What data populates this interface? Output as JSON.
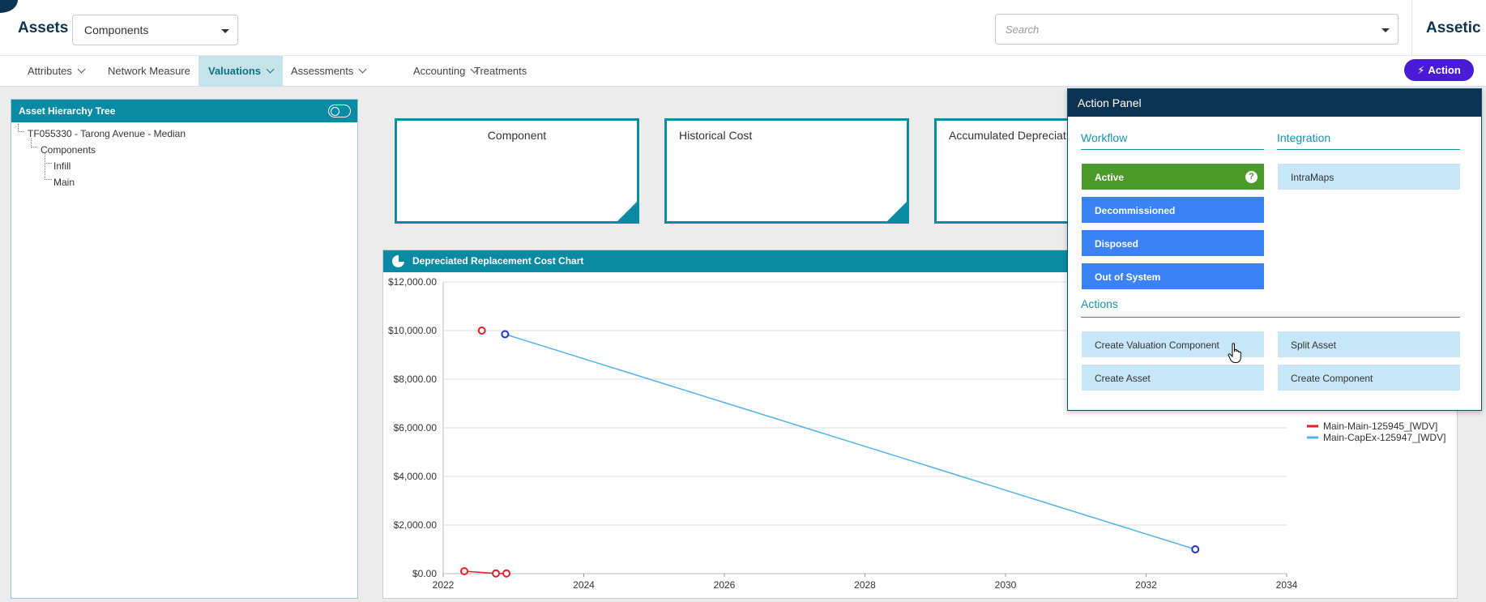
{
  "header": {
    "module_title": "Assets",
    "category_select": "Components",
    "search_placeholder": "Search",
    "brand": "Assetic"
  },
  "nav": {
    "tabs": [
      {
        "label": "Attributes",
        "has_menu": true,
        "active": false
      },
      {
        "label": "Network Measure",
        "has_menu": false,
        "active": false
      },
      {
        "label": "Valuations",
        "has_menu": true,
        "active": true
      },
      {
        "label": "Assessments",
        "has_menu": true,
        "active": false
      },
      {
        "label": "Accounting",
        "has_menu": true,
        "active": false
      },
      {
        "label": "Treatments",
        "has_menu": false,
        "active": false
      }
    ],
    "action_label": "Action"
  },
  "tree": {
    "title": "Asset Hierarchy Tree",
    "root": "TF055330 - Tarong Avenue - Median",
    "group": "Components",
    "leaves": [
      "Infill",
      "Main"
    ]
  },
  "cards": [
    {
      "title": "Component"
    },
    {
      "title": "Historical Cost"
    },
    {
      "title": "Accumulated Depreciat"
    }
  ],
  "chart_panel": {
    "title": "Depreciated Replacement Cost Chart"
  },
  "chart_data": {
    "type": "line",
    "title": "",
    "xlabel": "",
    "ylabel": "",
    "xlim": [
      2022,
      2034
    ],
    "ylim": [
      0,
      12000
    ],
    "x_ticks": [
      "2022",
      "2024",
      "2026",
      "2028",
      "2030",
      "2032",
      "2034"
    ],
    "y_ticks": [
      "$0.00",
      "$2,000.00",
      "$4,000.00",
      "$6,000.00",
      "$8,000.00",
      "$10,000.00",
      "$12,000.00"
    ],
    "grid": true,
    "legend_position": "right",
    "series": [
      {
        "name": "Main-Main-125945_[WDV]",
        "color": "#e0202a",
        "marker_color": "#e0202a",
        "points": [
          [
            2022.3,
            100
          ],
          [
            2022.75,
            10
          ],
          [
            2022.9,
            10
          ]
        ]
      },
      {
        "name": "Main-CapEx-125947_[WDV]",
        "color": "#4fb3e8",
        "marker_color": "#1f2fd6",
        "points": [
          [
            2022.88,
            9850
          ],
          [
            2032.7,
            1000
          ]
        ]
      },
      {
        "name": "",
        "color": "#e0202a",
        "marker_color": "#e0202a",
        "points": [
          [
            2022.55,
            10000
          ]
        ]
      }
    ]
  },
  "action_panel": {
    "title": "Action Panel",
    "workflow_title": "Workflow",
    "integration_title": "Integration",
    "actions_title": "Actions",
    "workflow_buttons": [
      "Active",
      "Decommissioned",
      "Disposed",
      "Out of System"
    ],
    "help_icon": "?",
    "integration_buttons": [
      "IntraMaps"
    ],
    "action_buttons": [
      "Create Valuation Component",
      "Split Asset",
      "Create Asset",
      "Create Component"
    ]
  },
  "colors": {
    "teal": "#0b8ba3",
    "navy": "#0d3350",
    "action_purple": "#4a1bd6",
    "workflow_green": "#4b9a2a",
    "workflow_blue": "#3b82f6",
    "light_blue": "#c7e6f8"
  }
}
